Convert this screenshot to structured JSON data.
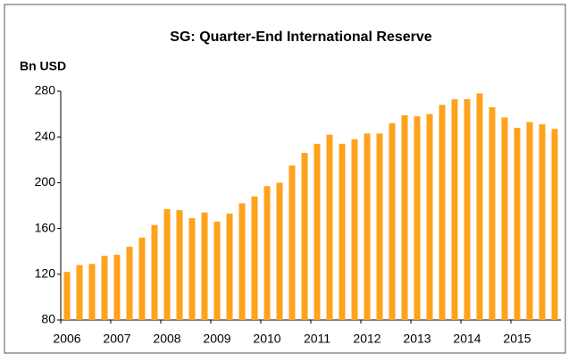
{
  "chart_data": {
    "type": "bar",
    "title": "SG: Quarter-End International Reserve",
    "y_label": "Bn USD",
    "categories": [
      "2006",
      null,
      null,
      null,
      "2007",
      null,
      null,
      null,
      "2008",
      null,
      null,
      null,
      "2009",
      null,
      null,
      null,
      "2010",
      null,
      null,
      null,
      "2011",
      null,
      null,
      null,
      "2012",
      null,
      null,
      null,
      "2013",
      null,
      null,
      null,
      "2014",
      null,
      null,
      null,
      "2015",
      null,
      null,
      null
    ],
    "values": [
      122,
      128,
      129,
      136,
      137,
      144,
      152,
      163,
      177,
      176,
      169,
      174,
      166,
      173,
      182,
      188,
      197,
      200,
      215,
      226,
      234,
      242,
      234,
      238,
      243,
      243,
      252,
      259,
      258,
      260,
      268,
      273,
      273,
      278,
      266,
      257,
      248,
      253,
      251,
      247
    ],
    "color": "#ffa21c",
    "ylim": [
      80,
      280
    ],
    "yticks": [
      80,
      120,
      160,
      200,
      240,
      280
    ],
    "grid": false
  }
}
